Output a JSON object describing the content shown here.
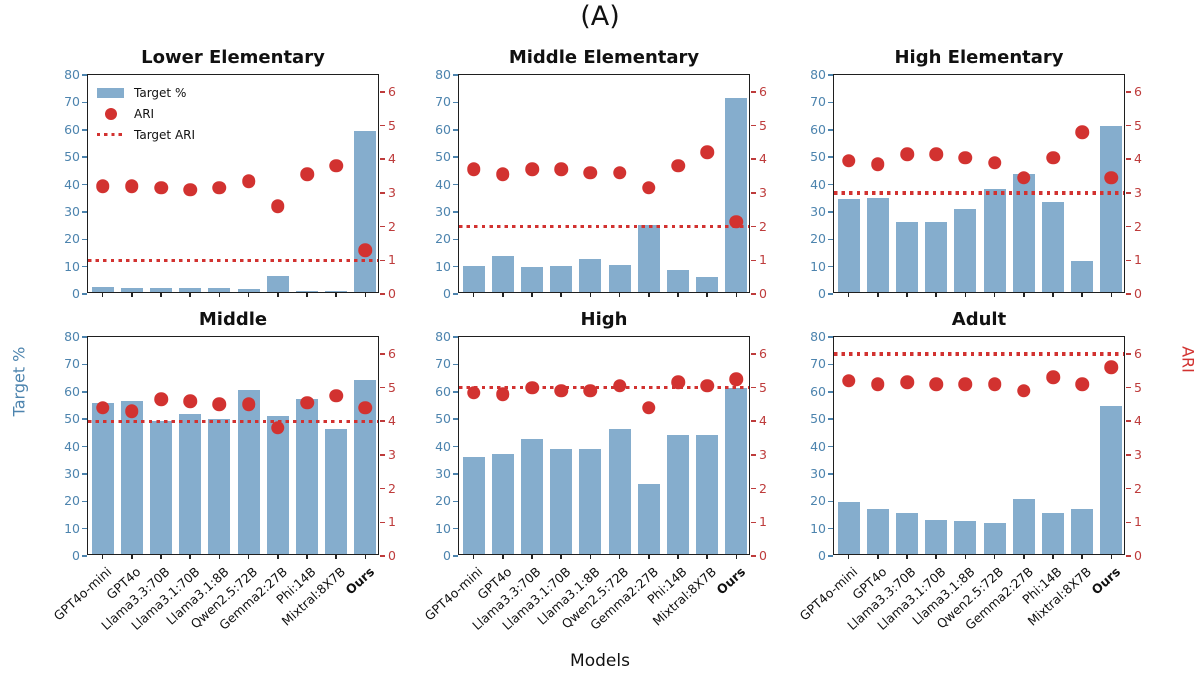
{
  "figure": {
    "panel_label": "(A)"
  },
  "axes": {
    "left_label": "Target %",
    "right_label": "ARI",
    "x_label": "Models",
    "left_ticks": [
      0,
      10,
      20,
      30,
      40,
      50,
      60,
      70,
      80
    ],
    "right_ticks": [
      0,
      1,
      2,
      3,
      4,
      5,
      6
    ],
    "left_range": [
      0,
      80
    ],
    "right_range": [
      0,
      6.5
    ]
  },
  "legend": [
    {
      "label": "Target %",
      "marker": "bar-swatch"
    },
    {
      "label": "ARI",
      "marker": "dot"
    },
    {
      "label": "Target ARI",
      "marker": "dotted-line"
    }
  ],
  "colors": {
    "bar": "#85ADCD",
    "ari_dot": "#D23230",
    "target_line": "#D23230",
    "left_axis_text": "#4D84AE",
    "right_axis_text": "#BE3B3B",
    "spine": "#1f1f1f",
    "x_tick": "#222222"
  },
  "models": [
    "GPT4o-mini",
    "GPT4o",
    "Llama3.3:70B",
    "Llama3.1:70B",
    "Llama3.1:8B",
    "Qwen2.5:72B",
    "Gemma2:27B",
    "Phi:14B",
    "Mixtral:8X7B",
    "Ours"
  ],
  "emphasized_category": "Ours",
  "chart_data": [
    {
      "type": "bar",
      "title": "Lower Elementary",
      "categories": [
        "GPT4o-mini",
        "GPT4o",
        "Llama3.3:70B",
        "Llama3.1:70B",
        "Llama3.1:8B",
        "Qwen2.5:72B",
        "Gemma2:27B",
        "Phi:14B",
        "Mixtral:8X7B",
        "Ours"
      ],
      "series": [
        {
          "name": "Target %",
          "type": "bar",
          "axis": "left",
          "values": [
            1.8,
            1.5,
            1.5,
            1.5,
            1.6,
            1.0,
            6.0,
            0.2,
            0.5,
            59.0
          ]
        },
        {
          "name": "ARI",
          "type": "scatter",
          "axis": "right",
          "values": [
            3.2,
            3.2,
            3.15,
            3.1,
            3.15,
            3.35,
            2.6,
            3.55,
            3.8,
            1.3
          ]
        },
        {
          "name": "Target ARI",
          "type": "hline",
          "axis": "right",
          "value": 1.0
        }
      ],
      "ylim_left": [
        0,
        80
      ],
      "ylim_right": [
        0,
        6.5
      ]
    },
    {
      "type": "bar",
      "title": "Middle Elementary",
      "categories": [
        "GPT4o-mini",
        "GPT4o",
        "Llama3.3:70B",
        "Llama3.1:70B",
        "Llama3.1:8B",
        "Qwen2.5:72B",
        "Gemma2:27B",
        "Phi:14B",
        "Mixtral:8X7B",
        "Ours"
      ],
      "series": [
        {
          "name": "Target %",
          "type": "bar",
          "axis": "left",
          "values": [
            9.5,
            13.0,
            9.0,
            9.5,
            12.0,
            10.0,
            24.5,
            8.0,
            5.5,
            71.0
          ]
        },
        {
          "name": "ARI",
          "type": "scatter",
          "axis": "right",
          "values": [
            3.7,
            3.55,
            3.7,
            3.7,
            3.6,
            3.6,
            3.15,
            3.8,
            4.2,
            2.15
          ]
        },
        {
          "name": "Target ARI",
          "type": "hline",
          "axis": "right",
          "value": 2.0
        }
      ],
      "ylim_left": [
        0,
        80
      ],
      "ylim_right": [
        0,
        6.5
      ]
    },
    {
      "type": "bar",
      "title": "High Elementary",
      "categories": [
        "GPT4o-mini",
        "GPT4o",
        "Llama3.3:70B",
        "Llama3.1:70B",
        "Llama3.1:8B",
        "Qwen2.5:72B",
        "Gemma2:27B",
        "Phi:14B",
        "Mixtral:8X7B",
        "Ours"
      ],
      "series": [
        {
          "name": "Target %",
          "type": "bar",
          "axis": "left",
          "values": [
            34.0,
            34.5,
            25.5,
            25.5,
            30.5,
            37.5,
            43.0,
            33.0,
            11.5,
            60.5
          ]
        },
        {
          "name": "ARI",
          "type": "scatter",
          "axis": "right",
          "values": [
            3.95,
            3.85,
            4.15,
            4.15,
            4.05,
            3.9,
            3.45,
            4.05,
            4.8,
            3.45
          ]
        },
        {
          "name": "Target ARI",
          "type": "hline",
          "axis": "right",
          "value": 3.0
        }
      ],
      "ylim_left": [
        0,
        80
      ],
      "ylim_right": [
        0,
        6.5
      ]
    },
    {
      "type": "bar",
      "title": "Middle",
      "categories": [
        "GPT4o-mini",
        "GPT4o",
        "Llama3.3:70B",
        "Llama3.1:70B",
        "Llama3.1:8B",
        "Qwen2.5:72B",
        "Gemma2:27B",
        "Phi:14B",
        "Mixtral:8X7B",
        "Ours"
      ],
      "series": [
        {
          "name": "Target %",
          "type": "bar",
          "axis": "left",
          "values": [
            55.0,
            56.0,
            48.5,
            51.0,
            49.5,
            60.0,
            50.5,
            56.5,
            45.5,
            63.5
          ]
        },
        {
          "name": "ARI",
          "type": "scatter",
          "axis": "right",
          "values": [
            4.4,
            4.3,
            4.65,
            4.6,
            4.5,
            4.5,
            3.8,
            4.55,
            4.75,
            4.4
          ]
        },
        {
          "name": "Target ARI",
          "type": "hline",
          "axis": "right",
          "value": 4.0
        }
      ],
      "ylim_left": [
        0,
        80
      ],
      "ylim_right": [
        0,
        6.5
      ]
    },
    {
      "type": "bar",
      "title": "High",
      "categories": [
        "GPT4o-mini",
        "GPT4o",
        "Llama3.3:70B",
        "Llama3.1:70B",
        "Llama3.1:8B",
        "Qwen2.5:72B",
        "Gemma2:27B",
        "Phi:14B",
        "Mixtral:8X7B",
        "Ours"
      ],
      "series": [
        {
          "name": "Target %",
          "type": "bar",
          "axis": "left",
          "values": [
            35.5,
            36.5,
            42.0,
            38.5,
            38.5,
            45.5,
            25.5,
            43.5,
            43.5,
            60.5
          ]
        },
        {
          "name": "ARI",
          "type": "scatter",
          "axis": "right",
          "values": [
            4.85,
            4.8,
            5.0,
            4.9,
            4.9,
            5.05,
            4.4,
            5.15,
            5.05,
            5.25
          ]
        },
        {
          "name": "Target ARI",
          "type": "hline",
          "axis": "right",
          "value": 5.0
        }
      ],
      "ylim_left": [
        0,
        80
      ],
      "ylim_right": [
        0,
        6.5
      ]
    },
    {
      "type": "bar",
      "title": "Adult",
      "categories": [
        "GPT4o-mini",
        "GPT4o",
        "Llama3.3:70B",
        "Llama3.1:70B",
        "Llama3.1:8B",
        "Qwen2.5:72B",
        "Gemma2:27B",
        "Phi:14B",
        "Mixtral:8X7B",
        "Ours"
      ],
      "series": [
        {
          "name": "Target %",
          "type": "bar",
          "axis": "left",
          "values": [
            19.0,
            16.5,
            15.0,
            12.5,
            12.0,
            11.5,
            20.0,
            15.0,
            16.5,
            54.0
          ]
        },
        {
          "name": "ARI",
          "type": "scatter",
          "axis": "right",
          "values": [
            5.2,
            5.1,
            5.15,
            5.1,
            5.1,
            5.1,
            4.9,
            5.3,
            5.1,
            5.6
          ]
        },
        {
          "name": "Target ARI",
          "type": "hline",
          "axis": "right",
          "value": 6.0
        }
      ],
      "ylim_left": [
        0,
        80
      ],
      "ylim_right": [
        0,
        6.5
      ]
    }
  ]
}
